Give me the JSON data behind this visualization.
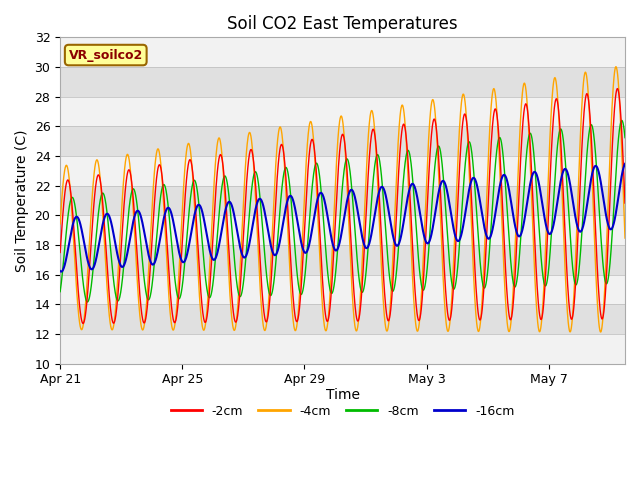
{
  "title": "Soil CO2 East Temperatures",
  "xlabel": "Time",
  "ylabel": "Soil Temperature (C)",
  "ylim": [
    10,
    32
  ],
  "yticks": [
    10,
    12,
    14,
    16,
    18,
    20,
    22,
    24,
    26,
    28,
    30,
    32
  ],
  "num_days": 18.5,
  "xtick_labels": [
    "Apr 21",
    "Apr 25",
    "Apr 29",
    "May 3",
    "May 7"
  ],
  "xtick_positions": [
    0,
    4,
    8,
    12,
    16
  ],
  "colors": {
    "2cm": "#ff0000",
    "4cm": "#ffa500",
    "8cm": "#00bb00",
    "16cm": "#0000cc"
  },
  "legend_label": "VR_soilco2",
  "series_labels": [
    "-2cm",
    "-4cm",
    "-8cm",
    "-16cm"
  ],
  "bg_color": "#ffffff",
  "plot_bg": "#e0e0e0",
  "band_color": "#f2f2f2",
  "title_fontsize": 12,
  "axis_fontsize": 10,
  "tick_fontsize": 9,
  "mean_base": 17.5,
  "warming_rate": 0.18
}
